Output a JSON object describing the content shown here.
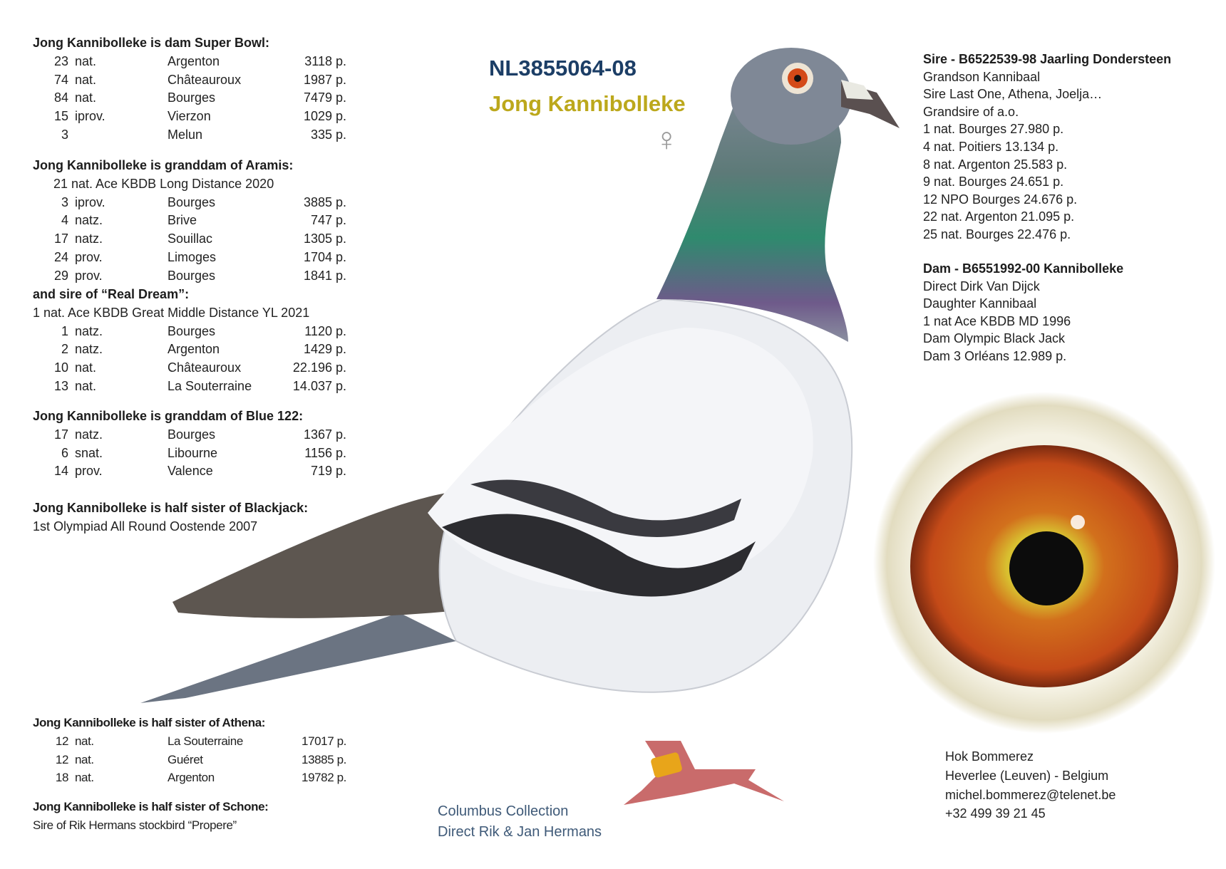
{
  "header": {
    "ring_number": "NL3855064-08",
    "name": "Jong Kannibolleke",
    "sex_symbol": "♀"
  },
  "left": {
    "super_bowl": {
      "title": "Jong Kannibolleke is dam Super Bowl:",
      "rows": [
        [
          "23",
          "nat.",
          "Argenton",
          "3118 p."
        ],
        [
          "74",
          "nat.",
          "Châteauroux",
          "1987 p."
        ],
        [
          "84",
          "nat.",
          "Bourges",
          "7479 p."
        ],
        [
          "15",
          "iprov.",
          "Vierzon",
          "1029 p."
        ],
        [
          "3",
          "",
          "Melun",
          "335 p."
        ]
      ]
    },
    "aramis": {
      "title": "Jong Kannibolleke is granddam of Aramis:",
      "note": "21  nat. Ace KBDB Long Distance 2020",
      "rows": [
        [
          "3",
          "iprov.",
          "Bourges",
          "3885 p."
        ],
        [
          "4",
          "natz.",
          "Brive",
          "747 p."
        ],
        [
          "17",
          "natz.",
          "Souillac",
          "1305 p."
        ],
        [
          "24",
          "prov.",
          "Limoges",
          "1704 p."
        ],
        [
          "29",
          "prov.",
          "Bourges",
          "1841 p."
        ]
      ]
    },
    "real_dream": {
      "title": "and sire of “Real Dream”:",
      "note": "1 nat. Ace KBDB Great Middle Distance YL 2021",
      "rows": [
        [
          "1",
          "natz.",
          "Bourges",
          "1120 p."
        ],
        [
          "2",
          "natz.",
          "Argenton",
          "1429 p."
        ],
        [
          "10",
          "nat.",
          "Châteauroux",
          "22.196 p."
        ],
        [
          "13",
          "nat.",
          "La Souterraine",
          "14.037 p."
        ]
      ]
    },
    "blue122": {
      "title": "Jong Kannibolleke is granddam of Blue 122:",
      "rows": [
        [
          "17",
          "natz.",
          "Bourges",
          "1367 p."
        ],
        [
          "6",
          "snat.",
          "Libourne",
          "1156 p."
        ],
        [
          "14",
          "prov.",
          "Valence",
          "719 p."
        ]
      ]
    },
    "blackjack": {
      "title": "Jong Kannibolleke is half sister of Blackjack:",
      "note": "1st Olympiad All Round Oostende 2007"
    },
    "athena": {
      "title": "Jong Kannibolleke is half sister of Athena:",
      "rows": [
        [
          "12",
          "nat.",
          "La Souterraine",
          "17017 p."
        ],
        [
          "12",
          "nat.",
          "Guéret",
          "13885 p."
        ],
        [
          "18",
          "nat.",
          "Argenton",
          "19782 p."
        ]
      ]
    },
    "schone": {
      "title": "Jong Kannibolleke is half sister of Schone:",
      "note": "Sire of Rik Hermans stockbird “Propere”"
    }
  },
  "sire": {
    "title": "Sire - B6522539-98 Jaarling Dondersteen",
    "lines": [
      "Grandson Kannibaal",
      "Sire Last One, Athena, Joelja…",
      "Grandsire of a.o.",
      "1 nat. Bourges 27.980 p.",
      "4 nat. Poitiers 13.134 p.",
      "8 nat. Argenton 25.583 p.",
      "9 nat. Bourges   24.651 p.",
      "12 NPO Bourges 24.676 p.",
      "22 nat. Argenton 21.095 p.",
      "25 nat. Bourges 22.476 p."
    ]
  },
  "dam": {
    "title": "Dam - B6551992-00 Kannibolleke",
    "lines": [
      "Direct Dirk Van Dijck",
      "Daughter Kannibaal",
      "1 nat Ace KBDB MD 1996",
      "Dam Olympic Black Jack",
      "Dam 3 Orléans 12.989 p."
    ]
  },
  "collection": [
    "Columbus Collection",
    "Direct Rik & Jan Hermans"
  ],
  "contact": [
    "Hok Bommerez",
    "Heverlee (Leuven) - Belgium",
    "michel.bommerez@telenet.be",
    "+32 499 39 21 45"
  ],
  "colors": {
    "ring_number": "#1c3e66",
    "name": "#bca81c",
    "collection": "#3f5a78"
  }
}
